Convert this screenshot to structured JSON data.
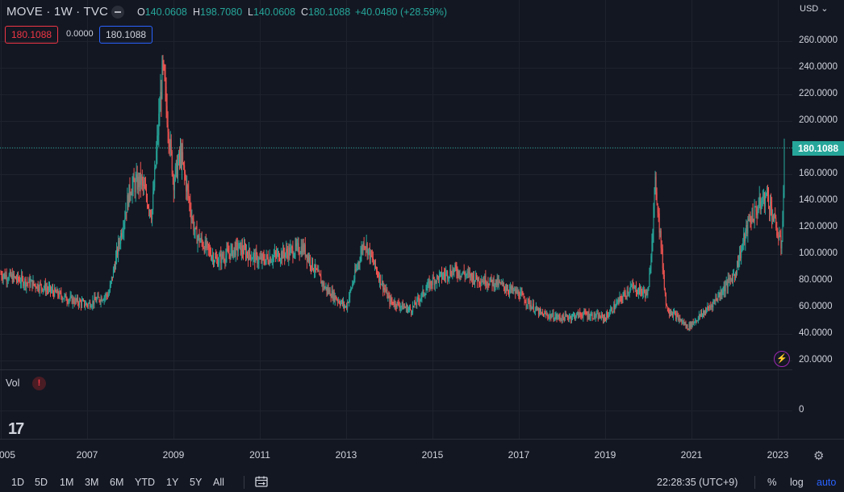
{
  "header": {
    "title": "MOVE · 1W · TVC",
    "ohlc": {
      "o_key": "O",
      "o_val": "140.0608",
      "h_key": "H",
      "h_val": "198.7080",
      "l_key": "L",
      "l_val": "140.0608",
      "c_key": "C",
      "c_val": "180.1088",
      "change": "+40.0480 (+28.59%)"
    },
    "sell_price": "180.1088",
    "spread": "0.0000",
    "buy_price": "180.1088"
  },
  "currency": "USD",
  "currency_chevron": "⌄",
  "last_price_tag": "180.1088",
  "volume": {
    "label": "Vol",
    "warning": "!",
    "zero_label": "0"
  },
  "logo_text": "17",
  "bottom": {
    "ranges": [
      "1D",
      "5D",
      "1M",
      "3M",
      "6M",
      "YTD",
      "1Y",
      "5Y",
      "All"
    ],
    "clock": "22:28:35 (UTC+9)",
    "percent": "%",
    "log": "log",
    "auto": "auto"
  },
  "icons": {
    "collapse": "minus-icon",
    "bolt": "lightning-icon",
    "gear": "gear-icon",
    "compare": "calendar-range-icon"
  },
  "colors": {
    "background": "#131722",
    "up": "#26a69a",
    "down": "#ef5350",
    "accent": "#2962ff",
    "grid": "#1e222d"
  },
  "chart_data": {
    "type": "candlestick",
    "symbol": "MOVE",
    "interval": "1W",
    "x_axis_ticks": [
      "005",
      "2007",
      "2009",
      "2011",
      "2013",
      "2015",
      "2017",
      "2019",
      "2021",
      "2023"
    ],
    "y_axis_ticks": [
      "260.0000",
      "240.0000",
      "220.0000",
      "200.0000",
      "180.0000",
      "160.0000",
      "140.0000",
      "120.0000",
      "100.0000",
      "80.0000",
      "60.0000",
      "40.0000",
      "20.0000"
    ],
    "ylim": [
      20,
      265
    ],
    "last_price": 180.1088,
    "approx_close_path": [
      {
        "date": "2005-01",
        "value": 85
      },
      {
        "date": "2005-07",
        "value": 80
      },
      {
        "date": "2006-01",
        "value": 75
      },
      {
        "date": "2006-07",
        "value": 67
      },
      {
        "date": "2007-01",
        "value": 62
      },
      {
        "date": "2007-07",
        "value": 70
      },
      {
        "date": "2007-10",
        "value": 110
      },
      {
        "date": "2008-01",
        "value": 150
      },
      {
        "date": "2008-04",
        "value": 155
      },
      {
        "date": "2008-07",
        "value": 130
      },
      {
        "date": "2008-10",
        "value": 240
      },
      {
        "date": "2009-01",
        "value": 155
      },
      {
        "date": "2009-03",
        "value": 175
      },
      {
        "date": "2009-07",
        "value": 115
      },
      {
        "date": "2010-01",
        "value": 95
      },
      {
        "date": "2010-07",
        "value": 105
      },
      {
        "date": "2011-01",
        "value": 95
      },
      {
        "date": "2011-07",
        "value": 100
      },
      {
        "date": "2012-01",
        "value": 105
      },
      {
        "date": "2012-07",
        "value": 75
      },
      {
        "date": "2013-01",
        "value": 60
      },
      {
        "date": "2013-06",
        "value": 110
      },
      {
        "date": "2014-01",
        "value": 65
      },
      {
        "date": "2014-07",
        "value": 58
      },
      {
        "date": "2015-01",
        "value": 80
      },
      {
        "date": "2015-07",
        "value": 88
      },
      {
        "date": "2016-01",
        "value": 82
      },
      {
        "date": "2016-07",
        "value": 78
      },
      {
        "date": "2017-01",
        "value": 70
      },
      {
        "date": "2017-07",
        "value": 55
      },
      {
        "date": "2018-01",
        "value": 52
      },
      {
        "date": "2018-07",
        "value": 55
      },
      {
        "date": "2019-01",
        "value": 52
      },
      {
        "date": "2019-08",
        "value": 75
      },
      {
        "date": "2020-01",
        "value": 70
      },
      {
        "date": "2020-03",
        "value": 155
      },
      {
        "date": "2020-06",
        "value": 60
      },
      {
        "date": "2020-12",
        "value": 45
      },
      {
        "date": "2021-06",
        "value": 60
      },
      {
        "date": "2022-01",
        "value": 85
      },
      {
        "date": "2022-05",
        "value": 125
      },
      {
        "date": "2022-10",
        "value": 145
      },
      {
        "date": "2023-02",
        "value": 105
      },
      {
        "date": "2023-03",
        "value": 180
      }
    ]
  }
}
